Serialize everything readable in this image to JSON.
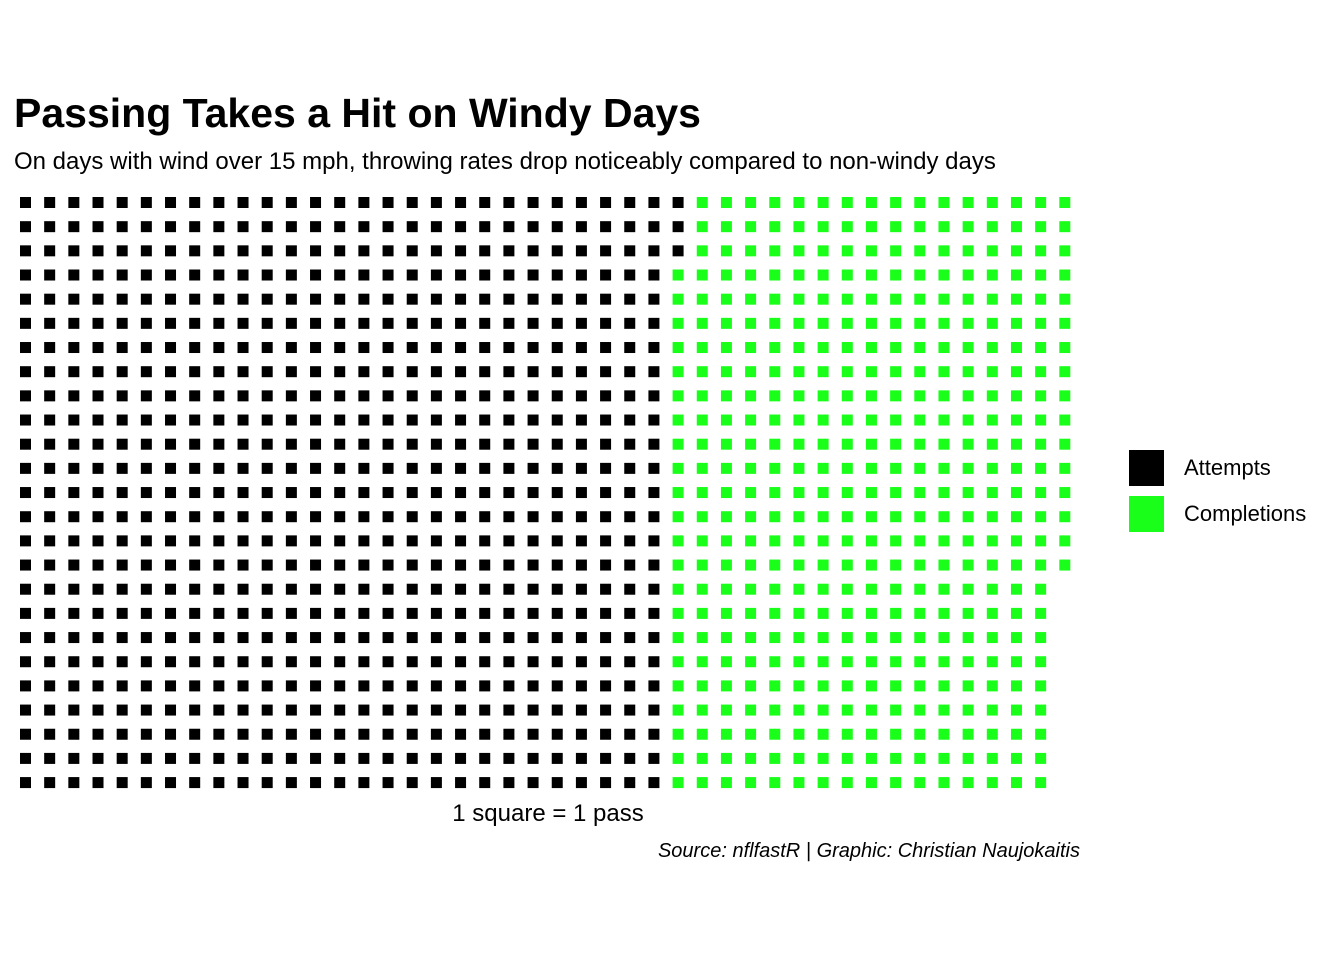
{
  "chart_data": {
    "type": "waffle",
    "title": "Passing Takes a Hit on Windy Days",
    "subtitle": "On days with wind over 15 mph, throwing rates drop noticeably compared to non-windy days",
    "xlabel": "1 square = 1 pass",
    "caption": "Source: nflfastR | Graphic: Christian Naujokaitis",
    "rows": 25,
    "legend_position": "right",
    "series": [
      {
        "name": "Attempts",
        "value": 678,
        "color": "#000000"
      },
      {
        "name": "Completions",
        "value": 413,
        "color": "#1aff1a"
      }
    ]
  }
}
